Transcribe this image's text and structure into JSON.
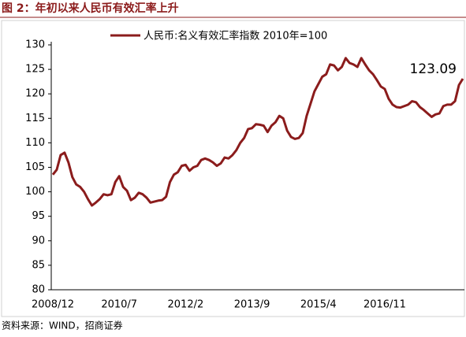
{
  "header": {
    "title": "图 2：年初以来人民币有效汇率上升"
  },
  "chart_data": {
    "type": "line",
    "categories": [
      "2008/12",
      null,
      null,
      null,
      null,
      null,
      null,
      null,
      null,
      null,
      null,
      null,
      null,
      null,
      null,
      null,
      null,
      "2010/7",
      null,
      null,
      null,
      null,
      null,
      null,
      null,
      null,
      null,
      null,
      null,
      null,
      null,
      null,
      null,
      null,
      "2012/2",
      null,
      null,
      null,
      null,
      null,
      null,
      null,
      null,
      null,
      null,
      null,
      null,
      null,
      null,
      null,
      null,
      "2013/9",
      null,
      null,
      null,
      null,
      null,
      null,
      null,
      null,
      null,
      null,
      null,
      null,
      null,
      null,
      null,
      null,
      "2015/4",
      null,
      null,
      null,
      null,
      null,
      null,
      null,
      null,
      null,
      null,
      null,
      null,
      null,
      null,
      null,
      null,
      "2016/11",
      null,
      null,
      null,
      null,
      null,
      null,
      null,
      null,
      null,
      null,
      null,
      null,
      null,
      null,
      null,
      null,
      null,
      null,
      null,
      null
    ],
    "series": [
      {
        "name": "人民币:名义有效汇率指数 2010年=100",
        "color": "#8b1c1c",
        "values": [
          103.5,
          104.5,
          107.5,
          108,
          106,
          103,
          101.5,
          101,
          100,
          98.5,
          97.2,
          97.8,
          98.5,
          99.5,
          99.3,
          99.5,
          102,
          103.2,
          101,
          100.2,
          98.3,
          98.8,
          99.8,
          99.5,
          98.8,
          97.8,
          98,
          98.2,
          98.3,
          99,
          102,
          103.5,
          104,
          105.3,
          105.5,
          104.3,
          105,
          105.3,
          106.5,
          106.8,
          106.5,
          106,
          105.3,
          105.8,
          107,
          106.8,
          107.5,
          108.5,
          110,
          111,
          112.8,
          113,
          113.8,
          113.7,
          113.5,
          112.2,
          113.5,
          114.2,
          115.5,
          115,
          112.5,
          111.2,
          110.8,
          111,
          112,
          115.5,
          118,
          120.5,
          122,
          123.5,
          124,
          126,
          125.8,
          124.8,
          125.5,
          127.3,
          126.3,
          126,
          125.5,
          127.3,
          126,
          124.8,
          124,
          122.8,
          121.5,
          121,
          119,
          117.8,
          117.3,
          117.2,
          117.5,
          117.8,
          118.5,
          118.3,
          117.3,
          116.7,
          116,
          115.3,
          115.8,
          116,
          117.5,
          117.8,
          117.8,
          118.5,
          121.8,
          123.09
        ]
      }
    ],
    "ylim": [
      80,
      130
    ],
    "yticks": [
      80,
      85,
      90,
      95,
      100,
      105,
      110,
      115,
      120,
      125,
      130
    ]
  },
  "footer": {
    "source": "资料来源：WIND，招商证券"
  }
}
